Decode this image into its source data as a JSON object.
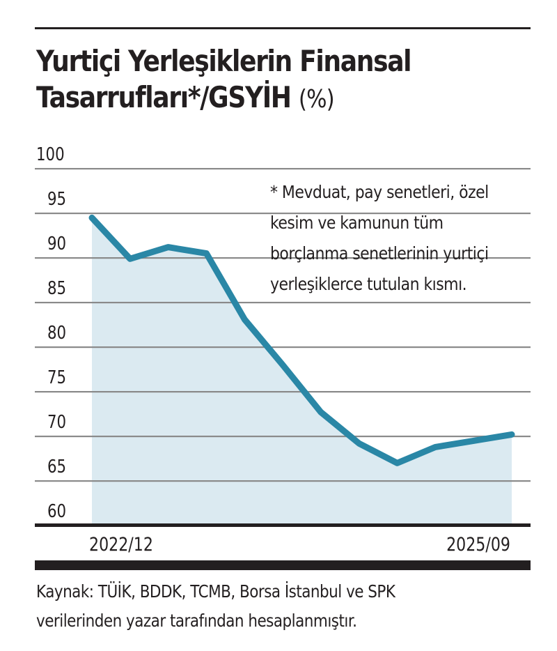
{
  "title": {
    "line1": "Yurtiçi Yerleşiklerin Finansal",
    "line2": "Tasarrufları*/GSYİH",
    "unit": "(%)"
  },
  "footnote": "* Mevduat, pay senetleri, özel\nkesim ve kamunun tüm\nborçlanma senetlerinin yurtiçi\nyerleşiklerce tutulan kısmı.",
  "source": "Kaynak: TÜİK, BDDK, TCMB, Borsa İstanbul ve SPK\nverilerinden yazar tarafından hesaplanmıştır.",
  "colors": {
    "line": "#2a87a6",
    "fill": "#d7e8f0",
    "grid": "#8a8a8a",
    "text": "#231f20"
  },
  "chart_data": {
    "type": "area",
    "title": "Yurtiçi Yerleşiklerin Finansal Tasarrufları*/GSYİH (%)",
    "xlabel": "",
    "ylabel": "%",
    "ylim": [
      60,
      100
    ],
    "yticks": [
      100,
      95,
      90,
      85,
      80,
      75,
      70,
      65,
      60
    ],
    "x_tick_labels": [
      "2022/12",
      "2025/09"
    ],
    "grid": true,
    "legend": null,
    "x": [
      "2022/12",
      "2023/03",
      "2023/06",
      "2023/09",
      "2023/12",
      "2024/03",
      "2024/06",
      "2024/09",
      "2024/12",
      "2025/03",
      "2025/06",
      "2025/09"
    ],
    "series": [
      {
        "name": "Yurtiçi Yerleşiklerin Finansal Tasarrufları/GSYİH",
        "values": [
          94.5,
          89.9,
          91.2,
          90.5,
          83.1,
          78.0,
          72.7,
          69.2,
          67.0,
          68.8,
          69.5,
          70.2
        ]
      }
    ],
    "annotations": [
      "* Mevduat, pay senetleri, özel kesim ve kamunun tüm borçlanma senetlerinin yurtiçi yerleşiklerce tutulan kısmı."
    ]
  }
}
